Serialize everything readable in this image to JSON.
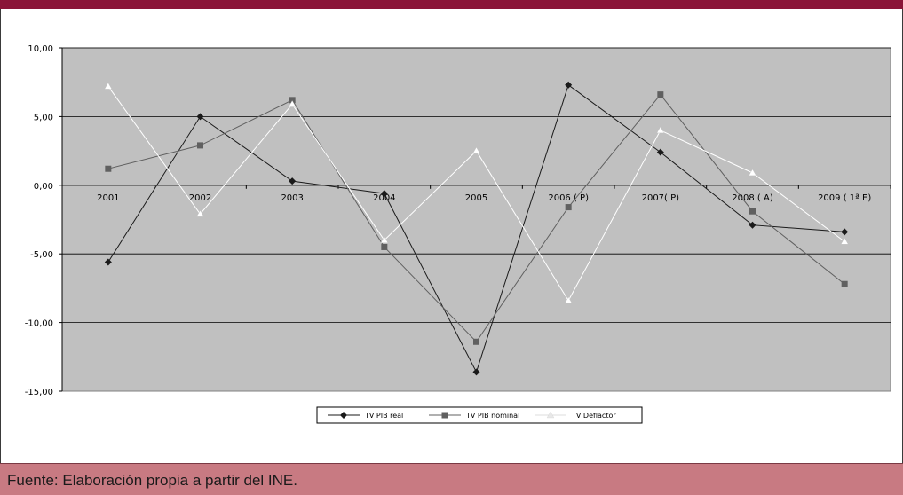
{
  "chart_data": {
    "type": "line",
    "categories": [
      "2001",
      "2002",
      "2003",
      "2004",
      "2005",
      "2006 ( P)",
      "2007( P)",
      "2008 ( A)",
      "2009 ( 1ª E)"
    ],
    "y_tick_labels": [
      "10,00",
      "5,00",
      "0,00",
      "-5,00",
      "-10,00",
      "-15,00"
    ],
    "y_ticks": [
      10,
      5,
      0,
      -5,
      -10,
      -15
    ],
    "ylim": [
      -15,
      10
    ],
    "grid": "horizontal",
    "legend_position": "bottom",
    "plot_background": "#c0c0c0",
    "series": [
      {
        "name": "TV PIB real",
        "marker": "diamond",
        "color": "#1a1a1a",
        "values": [
          -5.6,
          5.0,
          0.3,
          -0.6,
          -13.6,
          7.3,
          2.4,
          -2.9,
          -3.4
        ]
      },
      {
        "name": "TV PIB nominal",
        "marker": "square",
        "color": "#606060",
        "values": [
          1.2,
          2.9,
          6.2,
          -4.5,
          -11.4,
          -1.6,
          6.6,
          -1.9,
          -7.2
        ]
      },
      {
        "name": "TV Deflactor",
        "marker": "triangle",
        "color": "#ffffff",
        "values": [
          7.2,
          -2.1,
          5.9,
          -4.0,
          2.5,
          -8.4,
          4.0,
          0.9,
          -4.1
        ]
      }
    ]
  },
  "footer": {
    "text": "Fuente: Elaboración propia a partir del INE."
  },
  "colors": {
    "header": "#8a1538",
    "footer": "#c87a82"
  }
}
